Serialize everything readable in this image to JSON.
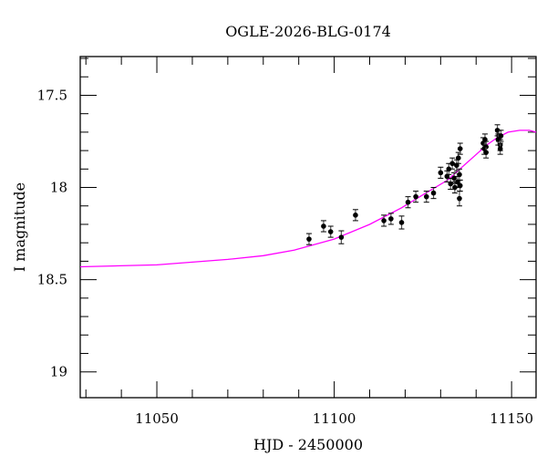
{
  "chart_data": {
    "type": "scatter",
    "title": "OGLE-2026-BLG-0174",
    "xlabel": "HJD - 2450000",
    "ylabel": "I magnitude",
    "xlim": [
      11028.4,
      11156.9
    ],
    "ylim": [
      19.14,
      17.29
    ],
    "y_inverted": true,
    "grid": false,
    "x_ticks": [
      11050,
      11100,
      11150
    ],
    "x_tick_labels": [
      "11050",
      "11100",
      "11150"
    ],
    "y_ticks": [
      17.5,
      18,
      18.5,
      19
    ],
    "y_tick_labels": [
      "17.5",
      "18",
      "18.5",
      "19"
    ],
    "colors": {
      "points": "#000000",
      "model": "#ff00ff",
      "errorbars": "#555555"
    },
    "points": [
      {
        "x": 11092.9,
        "y": 18.28,
        "err": 0.03
      },
      {
        "x": 11097,
        "y": 18.21,
        "err": 0.03
      },
      {
        "x": 11099,
        "y": 18.24,
        "err": 0.03
      },
      {
        "x": 11102,
        "y": 18.27,
        "err": 0.035
      },
      {
        "x": 11106,
        "y": 18.15,
        "err": 0.03
      },
      {
        "x": 11114,
        "y": 18.18,
        "err": 0.03
      },
      {
        "x": 11116,
        "y": 18.17,
        "err": 0.03
      },
      {
        "x": 11119,
        "y": 18.19,
        "err": 0.035
      },
      {
        "x": 11120.8,
        "y": 18.08,
        "err": 0.03
      },
      {
        "x": 11123,
        "y": 18.05,
        "err": 0.03
      },
      {
        "x": 11126,
        "y": 18.05,
        "err": 0.03
      },
      {
        "x": 11128,
        "y": 18.03,
        "err": 0.03
      },
      {
        "x": 11130,
        "y": 17.92,
        "err": 0.03
      },
      {
        "x": 11131.8,
        "y": 17.94,
        "err": 0.03
      },
      {
        "x": 11132.3,
        "y": 17.9,
        "err": 0.03
      },
      {
        "x": 11132.8,
        "y": 17.98,
        "err": 0.03
      },
      {
        "x": 11133.3,
        "y": 17.87,
        "err": 0.03
      },
      {
        "x": 11133.8,
        "y": 17.95,
        "err": 0.03
      },
      {
        "x": 11134,
        "y": 18.0,
        "err": 0.03
      },
      {
        "x": 11134.5,
        "y": 17.88,
        "err": 0.03
      },
      {
        "x": 11134.8,
        "y": 17.97,
        "err": 0.03
      },
      {
        "x": 11135,
        "y": 17.84,
        "err": 0.03
      },
      {
        "x": 11135.3,
        "y": 17.93,
        "err": 0.03
      },
      {
        "x": 11135.3,
        "y": 18.06,
        "err": 0.04
      },
      {
        "x": 11135.5,
        "y": 17.99,
        "err": 0.03
      },
      {
        "x": 11135.5,
        "y": 17.79,
        "err": 0.03
      },
      {
        "x": 11142,
        "y": 17.76,
        "err": 0.03
      },
      {
        "x": 11142.3,
        "y": 17.79,
        "err": 0.03
      },
      {
        "x": 11142.8,
        "y": 17.78,
        "err": 0.03
      },
      {
        "x": 11142.8,
        "y": 17.81,
        "err": 0.03
      },
      {
        "x": 11142.5,
        "y": 17.74,
        "err": 0.03
      },
      {
        "x": 11146,
        "y": 17.69,
        "err": 0.03
      },
      {
        "x": 11146.4,
        "y": 17.72,
        "err": 0.03
      },
      {
        "x": 11146.2,
        "y": 17.74,
        "err": 0.03
      },
      {
        "x": 11147,
        "y": 17.72,
        "err": 0.03
      },
      {
        "x": 11146.8,
        "y": 17.77,
        "err": 0.03
      },
      {
        "x": 11146.8,
        "y": 17.79,
        "err": 0.03
      }
    ],
    "model": {
      "x": [
        11028.4,
        11050,
        11070,
        11080,
        11088.7,
        11100,
        11110,
        11119,
        11125,
        11132,
        11136,
        11139.5,
        11143,
        11145.9,
        11149,
        11152.3,
        11155,
        11156.9
      ],
      "y": [
        18.43,
        18.42,
        18.39,
        18.37,
        18.34,
        18.28,
        18.2,
        18.11,
        18.04,
        17.96,
        17.89,
        17.83,
        17.77,
        17.73,
        17.7,
        17.69,
        17.69,
        17.7
      ]
    }
  }
}
